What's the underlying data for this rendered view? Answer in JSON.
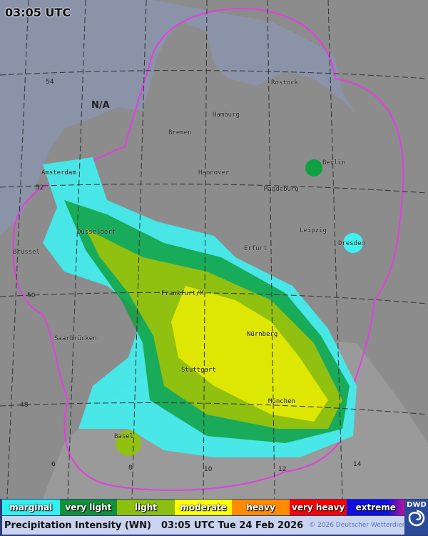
{
  "header": {
    "time": "03:05 UTC"
  },
  "map": {
    "no_data_label": "N/A",
    "cities": [
      {
        "name": "Rostock"
      },
      {
        "name": "Hamburg"
      },
      {
        "name": "Bremen"
      },
      {
        "name": "Berlin"
      },
      {
        "name": "Hannover"
      },
      {
        "name": "Magdeburg"
      },
      {
        "name": "Amsterdam"
      },
      {
        "name": "Düsseldorf"
      },
      {
        "name": "Leipzig"
      },
      {
        "name": "Dresden"
      },
      {
        "name": "Erfurt"
      },
      {
        "name": "Brüssel"
      },
      {
        "name": "Frankfurt/M"
      },
      {
        "name": "Nürnberg"
      },
      {
        "name": "Saarbrücken"
      },
      {
        "name": "Stuttgart"
      },
      {
        "name": "München"
      },
      {
        "name": "Basel"
      }
    ],
    "latitudes": [
      "54",
      "52",
      "50",
      "48"
    ],
    "longitudes": [
      "6",
      "8",
      "10",
      "12",
      "14"
    ],
    "colors": {
      "sea": "#8a93a8",
      "land": "#8c8c8c",
      "radar_outline": "#e040e0",
      "marginal": "#40f0f0",
      "very_light": "#10a040",
      "light": "#90c010",
      "moderate": "#f0f000"
    }
  },
  "legend": [
    {
      "label": "marginal",
      "color": "#33f0f0"
    },
    {
      "label": "very light",
      "color": "#13913a"
    },
    {
      "label": "light",
      "color": "#8cbf10"
    },
    {
      "label": "moderate",
      "color": "#ffff00"
    },
    {
      "label": "heavy",
      "color": "#ff8c00"
    },
    {
      "label": "very heavy",
      "color": "#ff0000"
    },
    {
      "label": "extreme",
      "color": "#1010e0"
    }
  ],
  "footer": {
    "product": "Precipitation Intensity (WN)",
    "datetime": "03:05 UTC Tue 24 Feb 2026",
    "copyright": "© 2026 Deutscher Wetterdienst"
  },
  "logo": {
    "text": "DWD"
  }
}
